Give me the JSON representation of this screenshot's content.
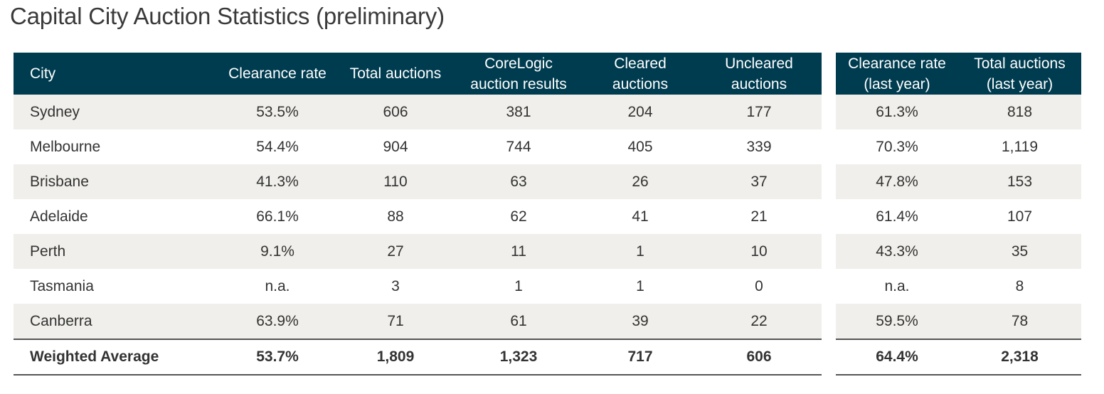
{
  "title": "Capital City Auction Statistics (preliminary)",
  "headers_left": {
    "city": "City",
    "clearance_rate": "Clearance rate",
    "total_auctions": "Total auctions",
    "corelogic_1": "CoreLogic",
    "corelogic_2": "auction results",
    "cleared_1": "Cleared",
    "cleared_2": "auctions",
    "uncleared_1": "Uncleared",
    "uncleared_2": "auctions"
  },
  "headers_right": {
    "cr_last_1": "Clearance rate",
    "cr_last_2": "(last year)",
    "ta_last_1": "Total auctions",
    "ta_last_2": "(last year)"
  },
  "rows": [
    {
      "city": "Sydney",
      "clearance_rate": "53.5%",
      "total_auctions": "606",
      "corelogic": "381",
      "cleared": "204",
      "uncleared": "177",
      "cr_last": "61.3%",
      "ta_last": "818"
    },
    {
      "city": "Melbourne",
      "clearance_rate": "54.4%",
      "total_auctions": "904",
      "corelogic": "744",
      "cleared": "405",
      "uncleared": "339",
      "cr_last": "70.3%",
      "ta_last": "1,119"
    },
    {
      "city": "Brisbane",
      "clearance_rate": "41.3%",
      "total_auctions": "110",
      "corelogic": "63",
      "cleared": "26",
      "uncleared": "37",
      "cr_last": "47.8%",
      "ta_last": "153"
    },
    {
      "city": "Adelaide",
      "clearance_rate": "66.1%",
      "total_auctions": "88",
      "corelogic": "62",
      "cleared": "41",
      "uncleared": "21",
      "cr_last": "61.4%",
      "ta_last": "107"
    },
    {
      "city": "Perth",
      "clearance_rate": "9.1%",
      "total_auctions": "27",
      "corelogic": "11",
      "cleared": "1",
      "uncleared": "10",
      "cr_last": "43.3%",
      "ta_last": "35"
    },
    {
      "city": "Tasmania",
      "clearance_rate": "n.a.",
      "total_auctions": "3",
      "corelogic": "1",
      "cleared": "1",
      "uncleared": "0",
      "cr_last": "n.a.",
      "ta_last": "8"
    },
    {
      "city": "Canberra",
      "clearance_rate": "63.9%",
      "total_auctions": "71",
      "corelogic": "61",
      "cleared": "39",
      "uncleared": "22",
      "cr_last": "59.5%",
      "ta_last": "78"
    }
  ],
  "average": {
    "city": "Weighted Average",
    "clearance_rate": "53.7%",
    "total_auctions": "1,809",
    "corelogic": "1,323",
    "cleared": "717",
    "uncleared": "606",
    "cr_last": "64.4%",
    "ta_last": "2,318"
  },
  "colors": {
    "header_bg": "#003c50",
    "row_shade": "#f0efeb",
    "header_text": "#ffffff"
  }
}
